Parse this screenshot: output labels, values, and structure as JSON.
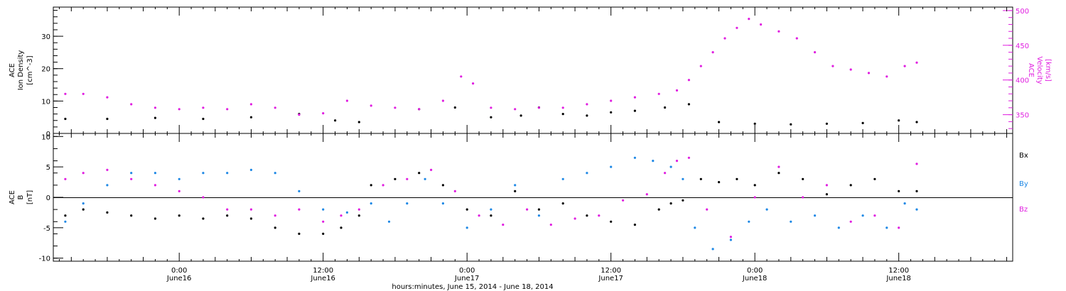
{
  "colors": {
    "black": "#000000",
    "magenta": "#e01ee0",
    "blue": "#1e88e5"
  },
  "x_axis": {
    "title": "hours:minutes, June 15, 2014 - June 18, 2014",
    "ticks": [
      {
        "time": "0:00",
        "date": "June16",
        "hour": 24
      },
      {
        "time": "12:00",
        "date": "June16",
        "hour": 36
      },
      {
        "time": "0:00",
        "date": "June17",
        "hour": 48
      },
      {
        "time": "12:00",
        "date": "June17",
        "hour": 60
      },
      {
        "time": "0:00",
        "date": "June18",
        "hour": 72
      },
      {
        "time": "12:00",
        "date": "June18",
        "hour": 84
      }
    ]
  },
  "chart_data": [
    {
      "type": "scatter",
      "panel": "top",
      "xlim_hours": [
        13.5,
        93.5
      ],
      "left_axis": {
        "label_lines": [
          "ACE",
          "Ion Density",
          "[cm^-3]"
        ],
        "ylim": [
          0,
          39
        ],
        "ticks": [
          "0",
          "10",
          "20",
          "30"
        ]
      },
      "right_axis": {
        "label_lines": [
          "ACE",
          "Velocity",
          "[km/s]"
        ],
        "ylim": [
          323,
          505
        ],
        "ticks": [
          "350",
          "400",
          "450",
          "500"
        ]
      },
      "series": [
        {
          "color": "#000000",
          "axis": "left",
          "x": [
            14.5,
            18,
            22,
            26,
            30,
            34,
            37,
            39,
            44,
            47,
            50,
            52.5,
            54,
            56,
            58,
            60,
            62,
            64.5,
            66.5,
            69,
            72,
            75,
            78,
            81,
            84,
            85.5
          ],
          "y": [
            4.5,
            4.5,
            4.8,
            4.5,
            5.0,
            6.0,
            4.0,
            3.5,
            7.5,
            8.0,
            5.0,
            5.5,
            8.0,
            6.0,
            5.5,
            6.5,
            7.0,
            8.0,
            9.0,
            3.5,
            3.0,
            2.8,
            3.0,
            3.2,
            4.0,
            3.5
          ]
        },
        {
          "color": "#e01ee0",
          "axis": "right",
          "x": [
            14.5,
            16,
            18,
            20,
            22,
            24,
            26,
            28,
            30,
            32,
            34,
            36,
            38,
            40,
            42,
            44,
            46,
            47.5,
            48.5,
            50,
            52,
            54,
            56,
            58,
            60,
            62,
            64,
            65.5,
            66.5,
            67.5,
            68.5,
            69.5,
            70.5,
            71.5,
            72.5,
            74,
            75.5,
            77,
            78.5,
            80,
            81.5,
            83,
            84.5,
            85.5
          ],
          "y": [
            380,
            380,
            375,
            365,
            360,
            358,
            360,
            358,
            365,
            360,
            350,
            352,
            370,
            363,
            360,
            358,
            370,
            405,
            395,
            360,
            358,
            360,
            360,
            365,
            370,
            375,
            380,
            385,
            400,
            420,
            440,
            460,
            475,
            488,
            480,
            470,
            460,
            440,
            420,
            415,
            410,
            405,
            420,
            425
          ]
        }
      ]
    },
    {
      "type": "scatter",
      "panel": "bottom",
      "xlim_hours": [
        13.5,
        93.5
      ],
      "ylim": [
        -10.5,
        10.5
      ],
      "y_axis": {
        "label_lines": [
          "ACE",
          "B",
          "[nT]"
        ],
        "ticks": [
          "-10",
          "-5",
          "0",
          "5",
          "10"
        ]
      },
      "legend": {
        "position": "right-outside",
        "entries": [
          "Bx",
          "By",
          "Bz"
        ]
      },
      "series": [
        {
          "name": "Bx",
          "color": "#000000",
          "x": [
            14.5,
            16,
            18,
            20,
            22,
            24,
            26,
            28,
            30,
            32,
            34,
            36,
            37.5,
            39,
            40,
            42,
            44,
            46,
            48,
            50,
            52,
            54,
            56,
            58,
            60,
            62,
            64,
            65,
            66,
            67.5,
            69,
            70.5,
            72,
            74,
            76,
            78,
            80,
            82,
            84,
            85.5
          ],
          "y": [
            -3.0,
            -2.0,
            -2.5,
            -3.0,
            -3.5,
            -3.0,
            -3.5,
            -3.0,
            -3.5,
            -5.0,
            -6.0,
            -6.0,
            -5.0,
            -3.0,
            2.0,
            3.0,
            4.0,
            2.0,
            -2.0,
            -3.0,
            1.0,
            -2.0,
            -1.0,
            -3.0,
            -4.0,
            -4.5,
            -2.0,
            -1.0,
            -0.5,
            3.0,
            2.5,
            3.0,
            2.0,
            4.0,
            3.0,
            0.5,
            2.0,
            3.0,
            1.0,
            1.0
          ]
        },
        {
          "name": "By",
          "color": "#1e88e5",
          "x": [
            14.5,
            16,
            18,
            20,
            22,
            24,
            26,
            28,
            30,
            32,
            34,
            36,
            38,
            40,
            41.5,
            43,
            44.5,
            46,
            48,
            50,
            52,
            54,
            56,
            58,
            60,
            62,
            63.5,
            65,
            66,
            67,
            68.5,
            70,
            71.5,
            73,
            75,
            77,
            79,
            81,
            83,
            84.5,
            85.5
          ],
          "y": [
            -4.0,
            -1.0,
            2.0,
            4.0,
            4.0,
            3.0,
            4.0,
            4.0,
            4.5,
            4.0,
            1.0,
            -2.0,
            -2.5,
            -1.0,
            -4.0,
            -1.0,
            3.0,
            -1.0,
            -5.0,
            -2.0,
            2.0,
            -3.0,
            3.0,
            4.0,
            5.0,
            6.5,
            6.0,
            5.0,
            3.0,
            -5.0,
            -8.5,
            -7.0,
            -4.0,
            -2.0,
            -4.0,
            -3.0,
            -5.0,
            -3.0,
            -5.0,
            -1.0,
            -2.0
          ]
        },
        {
          "name": "Bz",
          "color": "#e01ee0",
          "x": [
            14.5,
            16,
            18,
            20,
            22,
            24,
            26,
            28,
            30,
            32,
            34,
            36,
            37.5,
            39,
            41,
            43,
            45,
            47,
            49,
            51,
            53,
            55,
            57,
            59,
            61,
            63,
            64.5,
            65.5,
            66.5,
            68,
            70,
            72,
            74,
            76,
            78,
            80,
            82,
            84,
            85.5
          ],
          "y": [
            3.0,
            4.0,
            4.5,
            3.0,
            2.0,
            1.0,
            0.0,
            -2.0,
            -2.0,
            -3.0,
            -2.0,
            -4.0,
            -3.0,
            -2.0,
            2.0,
            3.0,
            4.5,
            1.0,
            -3.0,
            -4.5,
            -2.0,
            -4.5,
            -3.5,
            -3.0,
            -0.5,
            0.5,
            4.0,
            6.0,
            6.5,
            -2.0,
            -6.5,
            0.0,
            5.0,
            0.0,
            2.0,
            -4.0,
            -3.0,
            -5.0,
            5.5
          ]
        }
      ]
    }
  ]
}
